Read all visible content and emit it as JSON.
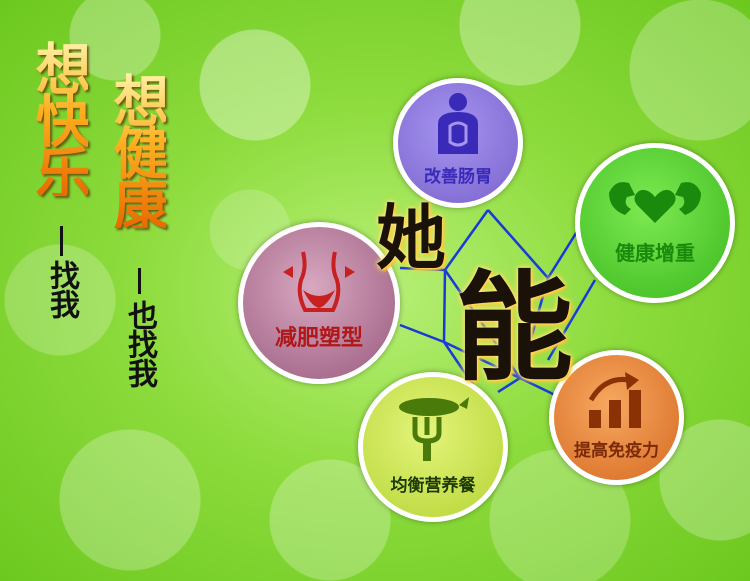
{
  "slogan": {
    "col1_big": "想快乐",
    "col1_small": "找我",
    "col2_big": "想健康",
    "col2_small": "也找我"
  },
  "hero": {
    "char1": "她",
    "char2": "能"
  },
  "circles": [
    {
      "label": "改善肠胃",
      "icon": "stomach-icon",
      "color": "#8a70d8"
    },
    {
      "label": "健康增重",
      "icon": "heart-muscle-icon",
      "color": "#4ac82a"
    },
    {
      "label": "减肥塑型",
      "icon": "waist-icon",
      "color": "#b57a9a"
    },
    {
      "label": "提高免疫力",
      "icon": "rising-bars-icon",
      "color": "#e98a3a"
    },
    {
      "label": "均衡营养餐",
      "icon": "fork-food-icon",
      "color": "#c6e04a"
    }
  ]
}
